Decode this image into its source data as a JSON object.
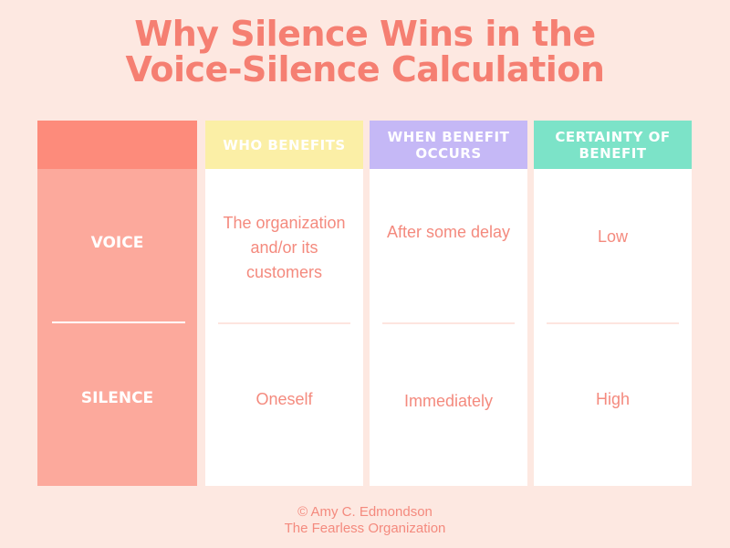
{
  "title": {
    "line1": "Why Silence Wins in the",
    "line2": "Voice-Silence Calculation"
  },
  "rows": {
    "voice": "VOICE",
    "silence": "SILENCE"
  },
  "columns": [
    {
      "header": "WHO BENEFITS",
      "voice": "The organization and/or its customers",
      "silence": "Oneself"
    },
    {
      "header": "WHEN BENEFIT OCCURS",
      "voice": "After some delay",
      "silence": "Immediately"
    },
    {
      "header": "CERTAINTY OF BENEFIT",
      "voice": "Low",
      "silence": "High"
    }
  ],
  "footer": {
    "copyright": "© Amy C. Edmondson",
    "source": "The Fearless Organization"
  },
  "colors": {
    "background": "#fde8e1",
    "title": "#f57f72",
    "row_label_column": "#fca99c",
    "row_label_header": "#fd8b7b",
    "who_benefits_header": "#fbefa6",
    "when_benefit_header": "#c5b8f6",
    "certainty_header": "#7ce3c8",
    "cell_text": "#f48a7e"
  }
}
